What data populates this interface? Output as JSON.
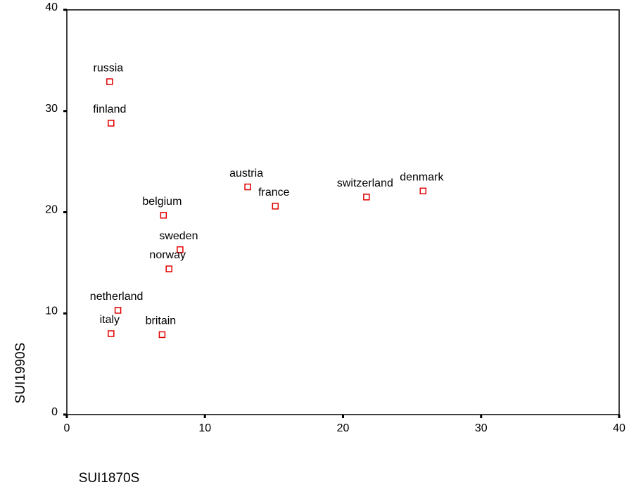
{
  "chart_data": {
    "type": "scatter",
    "x_label": "SUI1870S",
    "y_label": "SUI1990S",
    "labels": [
      "russia",
      "finland",
      "austria",
      "france",
      "switzerland",
      "denmark",
      "belgium",
      "sweden",
      "norway",
      "netherland",
      "italy",
      "britain"
    ],
    "x": [
      3.1,
      3.2,
      13.1,
      15.1,
      21.7,
      25.8,
      7.0,
      8.2,
      7.4,
      3.7,
      3.2,
      6.9
    ],
    "y": [
      32.9,
      28.8,
      22.5,
      20.6,
      21.5,
      22.1,
      19.7,
      16.3,
      14.4,
      10.3,
      8.0,
      7.9
    ],
    "color": "#e00000",
    "xlim": [
      0,
      40
    ],
    "xticks": [
      0,
      10,
      20,
      30,
      40
    ],
    "ylim": [
      0,
      40
    ],
    "yticks": [
      0,
      10,
      20,
      30,
      40
    ]
  }
}
